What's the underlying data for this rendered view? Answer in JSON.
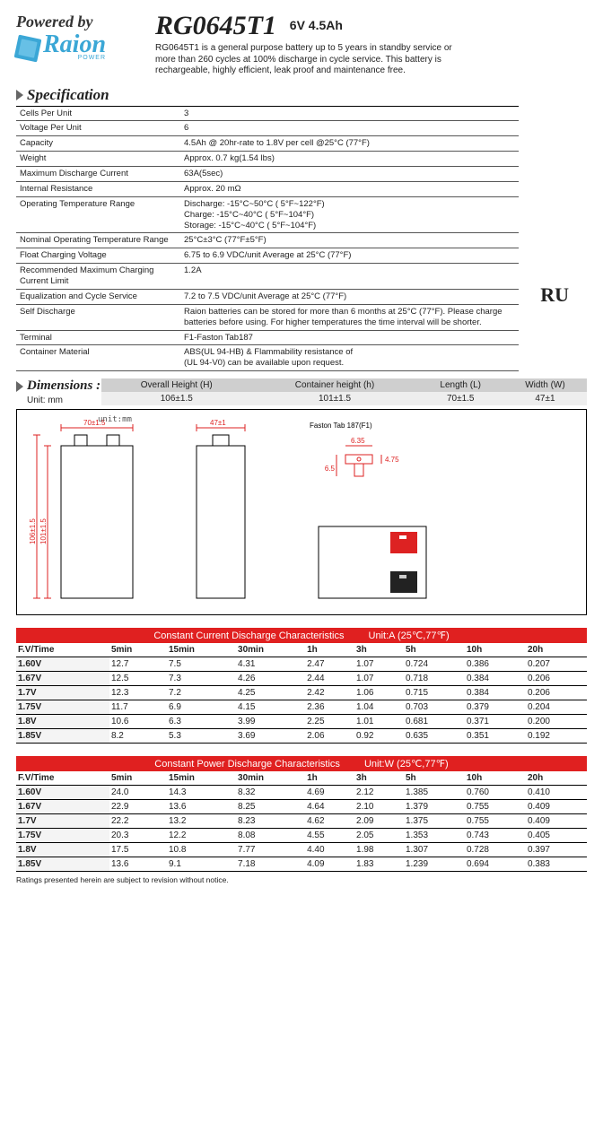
{
  "header": {
    "powered_by": "Powered by",
    "brand": "Raion",
    "brand_sub": "POWER",
    "model": "RG0645T1",
    "rating": "6V 4.5Ah",
    "description": "RG0645T1 is a general purpose battery up to 5 years in standby service or more than 260 cycles at 100% discharge in cycle service. This battery is rechargeable, highly efficient, leak proof and maintenance free."
  },
  "sections": {
    "specification": "Specification",
    "dimensions": "Dimensions :"
  },
  "cert_mark": "RU",
  "spec_rows": [
    {
      "k": "Cells Per Unit",
      "v": "3"
    },
    {
      "k": "Voltage Per Unit",
      "v": "6"
    },
    {
      "k": "Capacity",
      "v": "4.5Ah @ 20hr-rate to 1.8V per cell @25°C (77°F)"
    },
    {
      "k": "Weight",
      "v": "Approx. 0.7 kg(1.54 lbs)"
    },
    {
      "k": "Maximum Discharge Current",
      "v": "63A(5sec)"
    },
    {
      "k": "Internal Resistance",
      "v": "Approx. 20 mΩ"
    },
    {
      "k": "Operating Temperature Range",
      "v": "Discharge: -15°C~50°C ( 5°F~122°F)\nCharge:  -15°C~40°C ( 5°F~104°F)\nStorage: -15°C~40°C ( 5°F~104°F)"
    },
    {
      "k": "Nominal Operating Temperature Range",
      "v": "25°C±3°C (77°F±5°F)"
    },
    {
      "k": "Float Charging Voltage",
      "v": "6.75 to 6.9 VDC/unit Average at 25°C (77°F)"
    },
    {
      "k": "Recommended Maximum Charging Current Limit",
      "v": "1.2A"
    },
    {
      "k": "Equalization and Cycle Service",
      "v": "7.2 to 7.5 VDC/unit Average at 25°C (77°F)"
    },
    {
      "k": "Self Discharge",
      "v": "Raion batteries can be stored for more than 6 months at 25°C (77°F). Please charge batteries before using.  For higher temperatures the time interval will be shorter."
    },
    {
      "k": "Terminal",
      "v": "F1-Faston Tab187"
    },
    {
      "k": "Container Material",
      "v": "ABS(UL 94-HB)  &   Flammability resistance of\n (UL 94-V0) can be available upon request."
    }
  ],
  "dimensions": {
    "unit_label": "Unit: mm",
    "unitmm": "unit:mm",
    "headers": [
      "Overall Height (H)",
      "Container height (h)",
      "Length (L)",
      "Width (W)"
    ],
    "values": [
      "106±1.5",
      "101±1.5",
      "70±1.5",
      "47±1"
    ],
    "diagram": {
      "faston_label": "Faston Tab 187(F1)",
      "top_w": "70±1.5",
      "top_d": "47±1",
      "h_outer": "106±1.5",
      "h_inner": "101±1.5",
      "tab_w": "6.35",
      "tab_h1": "6.5",
      "tab_h2": "4.75"
    }
  },
  "discharge_current": {
    "title": "Constant Current Discharge Characteristics",
    "unit": "Unit:A (25℃,77℉)",
    "columns": [
      "F.V/Time",
      "5min",
      "15min",
      "30min",
      "1h",
      "3h",
      "5h",
      "10h",
      "20h"
    ],
    "rows": [
      [
        "1.60V",
        "12.7",
        "7.5",
        "4.31",
        "2.47",
        "1.07",
        "0.724",
        "0.386",
        "0.207"
      ],
      [
        "1.67V",
        "12.5",
        "7.3",
        "4.26",
        "2.44",
        "1.07",
        "0.718",
        "0.384",
        "0.206"
      ],
      [
        "1.7V",
        "12.3",
        "7.2",
        "4.25",
        "2.42",
        "1.06",
        "0.715",
        "0.384",
        "0.206"
      ],
      [
        "1.75V",
        "11.7",
        "6.9",
        "4.15",
        "2.36",
        "1.04",
        "0.703",
        "0.379",
        "0.204"
      ],
      [
        "1.8V",
        "10.6",
        "6.3",
        "3.99",
        "2.25",
        "1.01",
        "0.681",
        "0.371",
        "0.200"
      ],
      [
        "1.85V",
        "8.2",
        "5.3",
        "3.69",
        "2.06",
        "0.92",
        "0.635",
        "0.351",
        "0.192"
      ]
    ]
  },
  "discharge_power": {
    "title": "Constant Power Discharge Characteristics",
    "unit": "Unit:W (25℃,77℉)",
    "columns": [
      "F.V/Time",
      "5min",
      "15min",
      "30min",
      "1h",
      "3h",
      "5h",
      "10h",
      "20h"
    ],
    "rows": [
      [
        "1.60V",
        "24.0",
        "14.3",
        "8.32",
        "4.69",
        "2.12",
        "1.385",
        "0.760",
        "0.410"
      ],
      [
        "1.67V",
        "22.9",
        "13.6",
        "8.25",
        "4.64",
        "2.10",
        "1.379",
        "0.755",
        "0.409"
      ],
      [
        "1.7V",
        "22.2",
        "13.2",
        "8.23",
        "4.62",
        "2.09",
        "1.375",
        "0.755",
        "0.409"
      ],
      [
        "1.75V",
        "20.3",
        "12.2",
        "8.08",
        "4.55",
        "2.05",
        "1.353",
        "0.743",
        "0.405"
      ],
      [
        "1.8V",
        "17.5",
        "10.8",
        "7.77",
        "4.40",
        "1.98",
        "1.307",
        "0.728",
        "0.397"
      ],
      [
        "1.85V",
        "13.6",
        "9.1",
        "7.18",
        "4.09",
        "1.83",
        "1.239",
        "0.694",
        "0.383"
      ]
    ]
  },
  "footnote": "Ratings presented herein are subject to revision without notice."
}
